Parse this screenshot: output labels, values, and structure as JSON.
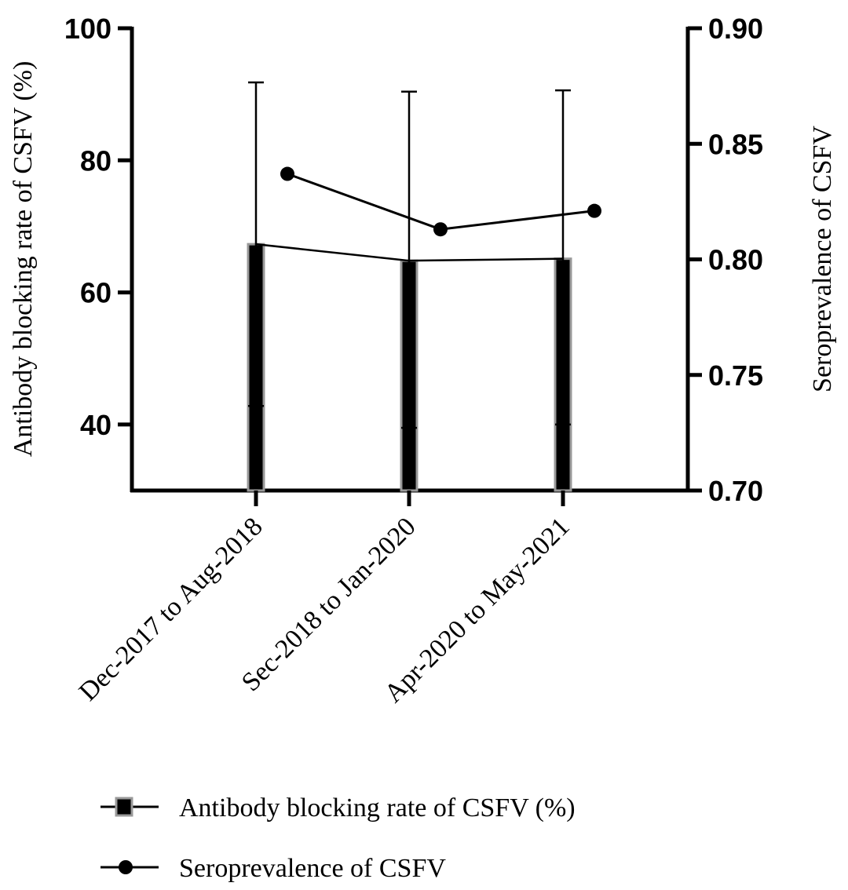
{
  "chart_data": {
    "type": "bar",
    "categories": [
      "Dec-2017 to Aug-2018",
      "Sec-2018 to Jan-2020",
      "Apr-2020 to May-2021"
    ],
    "left_axis": {
      "label": "Antibody blocking rate of CSFV (%)",
      "ylim": [
        30,
        100
      ],
      "ticks": [
        40,
        60,
        80,
        100
      ],
      "tick_labels": [
        "40",
        "60",
        "80",
        "100"
      ]
    },
    "right_axis": {
      "label": "Seroprevalence of CSFV",
      "ylim": [
        0.7,
        0.9
      ],
      "ticks": [
        0.7,
        0.75,
        0.8,
        0.85,
        0.9
      ],
      "tick_labels": [
        "0.70",
        "0.75",
        "0.80",
        "0.85",
        "0.90"
      ]
    },
    "series": [
      {
        "name": "Antibody blocking rate of CSFV (%)",
        "type": "bar",
        "axis": "left",
        "values": [
          67.3,
          64.8,
          65.1
        ],
        "error_upper": [
          91.8,
          90.4,
          90.6
        ],
        "error_lower": [
          42.8,
          39.5,
          40.0
        ],
        "color": "#000000",
        "edge": "#999999"
      },
      {
        "name": "Seroprevalence of CSFV",
        "type": "line",
        "axis": "right",
        "values": [
          0.837,
          0.813,
          0.821
        ],
        "color": "#000000"
      }
    ],
    "grid": false,
    "legend": "bottom"
  }
}
